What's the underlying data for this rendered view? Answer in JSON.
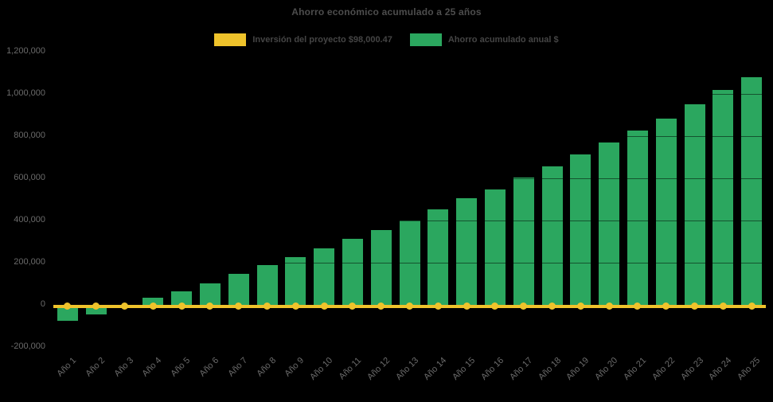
{
  "chart": {
    "title": "Ahorro económico acumulado a 25 años"
  },
  "chart_data": {
    "type": "bar",
    "title": "Ahorro económico acumulado a 25 años",
    "categories": [
      "Año 1",
      "Año 2",
      "Año 3",
      "Año 4",
      "Año 5",
      "Año 6",
      "Año 7",
      "Año 8",
      "Año 9",
      "Año 10",
      "Año 11",
      "Año 12",
      "Año 13",
      "Año 14",
      "Año 15",
      "Año 16",
      "Año 17",
      "Año 18",
      "Año 19",
      "Año 20",
      "Año 21",
      "Año 22",
      "Año 23",
      "Año 24",
      "Año 25"
    ],
    "series": [
      {
        "name": "Inversión del proyecto $98,000.47",
        "type": "line",
        "color": "#EFC32B",
        "constant_value": 0
      },
      {
        "name": "Ahorro acumulado anual $",
        "type": "bar",
        "color": "#2BA75F",
        "values": [
          -77000,
          -46000,
          -5000,
          33000,
          63000,
          102000,
          147000,
          186000,
          226000,
          268000,
          313000,
          355000,
          400000,
          453000,
          504000,
          547000,
          604000,
          657000,
          714000,
          769000,
          826000,
          882000,
          950000,
          1017000,
          1080000
        ]
      }
    ],
    "ylim": [
      -200000,
      1200000
    ],
    "yticks": {
      "values": [
        1200000,
        1000000,
        800000,
        600000,
        400000,
        200000,
        0,
        -200000
      ],
      "labels": [
        "1,200,000",
        "1,000,000",
        "800,000",
        "600,000",
        "400,000",
        "200,000",
        "0",
        "-200,000"
      ]
    },
    "xlabel": "",
    "ylabel": "",
    "grid": "horizontal",
    "legend_position": "top"
  }
}
